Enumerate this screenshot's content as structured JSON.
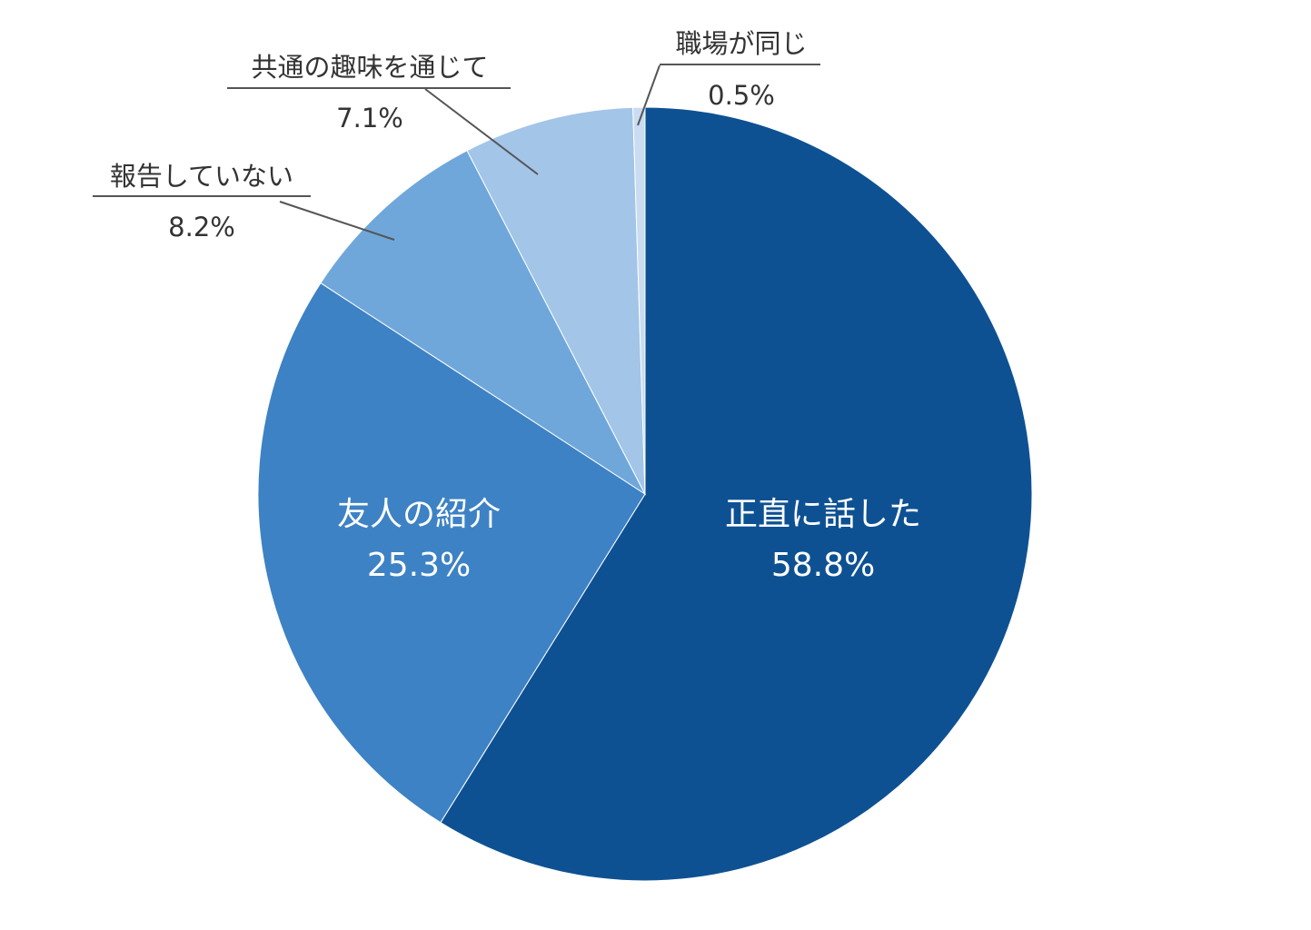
{
  "chart_data": {
    "type": "pie",
    "start": "top-clockwise",
    "slices": [
      {
        "label": "正直に話した",
        "value": 58.8,
        "value_label": "58.8%",
        "color": "#0e5193",
        "label_placement": "inside",
        "label_color": "#ffffff"
      },
      {
        "label": "友人の紹介",
        "value": 25.3,
        "value_label": "25.3%",
        "color": "#3d82c4",
        "label_placement": "inside",
        "label_color": "#ffffff"
      },
      {
        "label": "報告していない",
        "value": 8.2,
        "value_label": "8.2%",
        "color": "#6fa7db",
        "label_placement": "outside",
        "label_color": "#333333"
      },
      {
        "label": "共通の趣味を通じて",
        "value": 7.1,
        "value_label": "7.1%",
        "color": "#a2c5e8",
        "label_placement": "outside",
        "label_color": "#333333"
      },
      {
        "label": "職場が同じ",
        "value": 0.5,
        "value_label": "0.5%",
        "color": "#c9dcf1",
        "label_placement": "outside",
        "label_color": "#333333"
      }
    ]
  }
}
